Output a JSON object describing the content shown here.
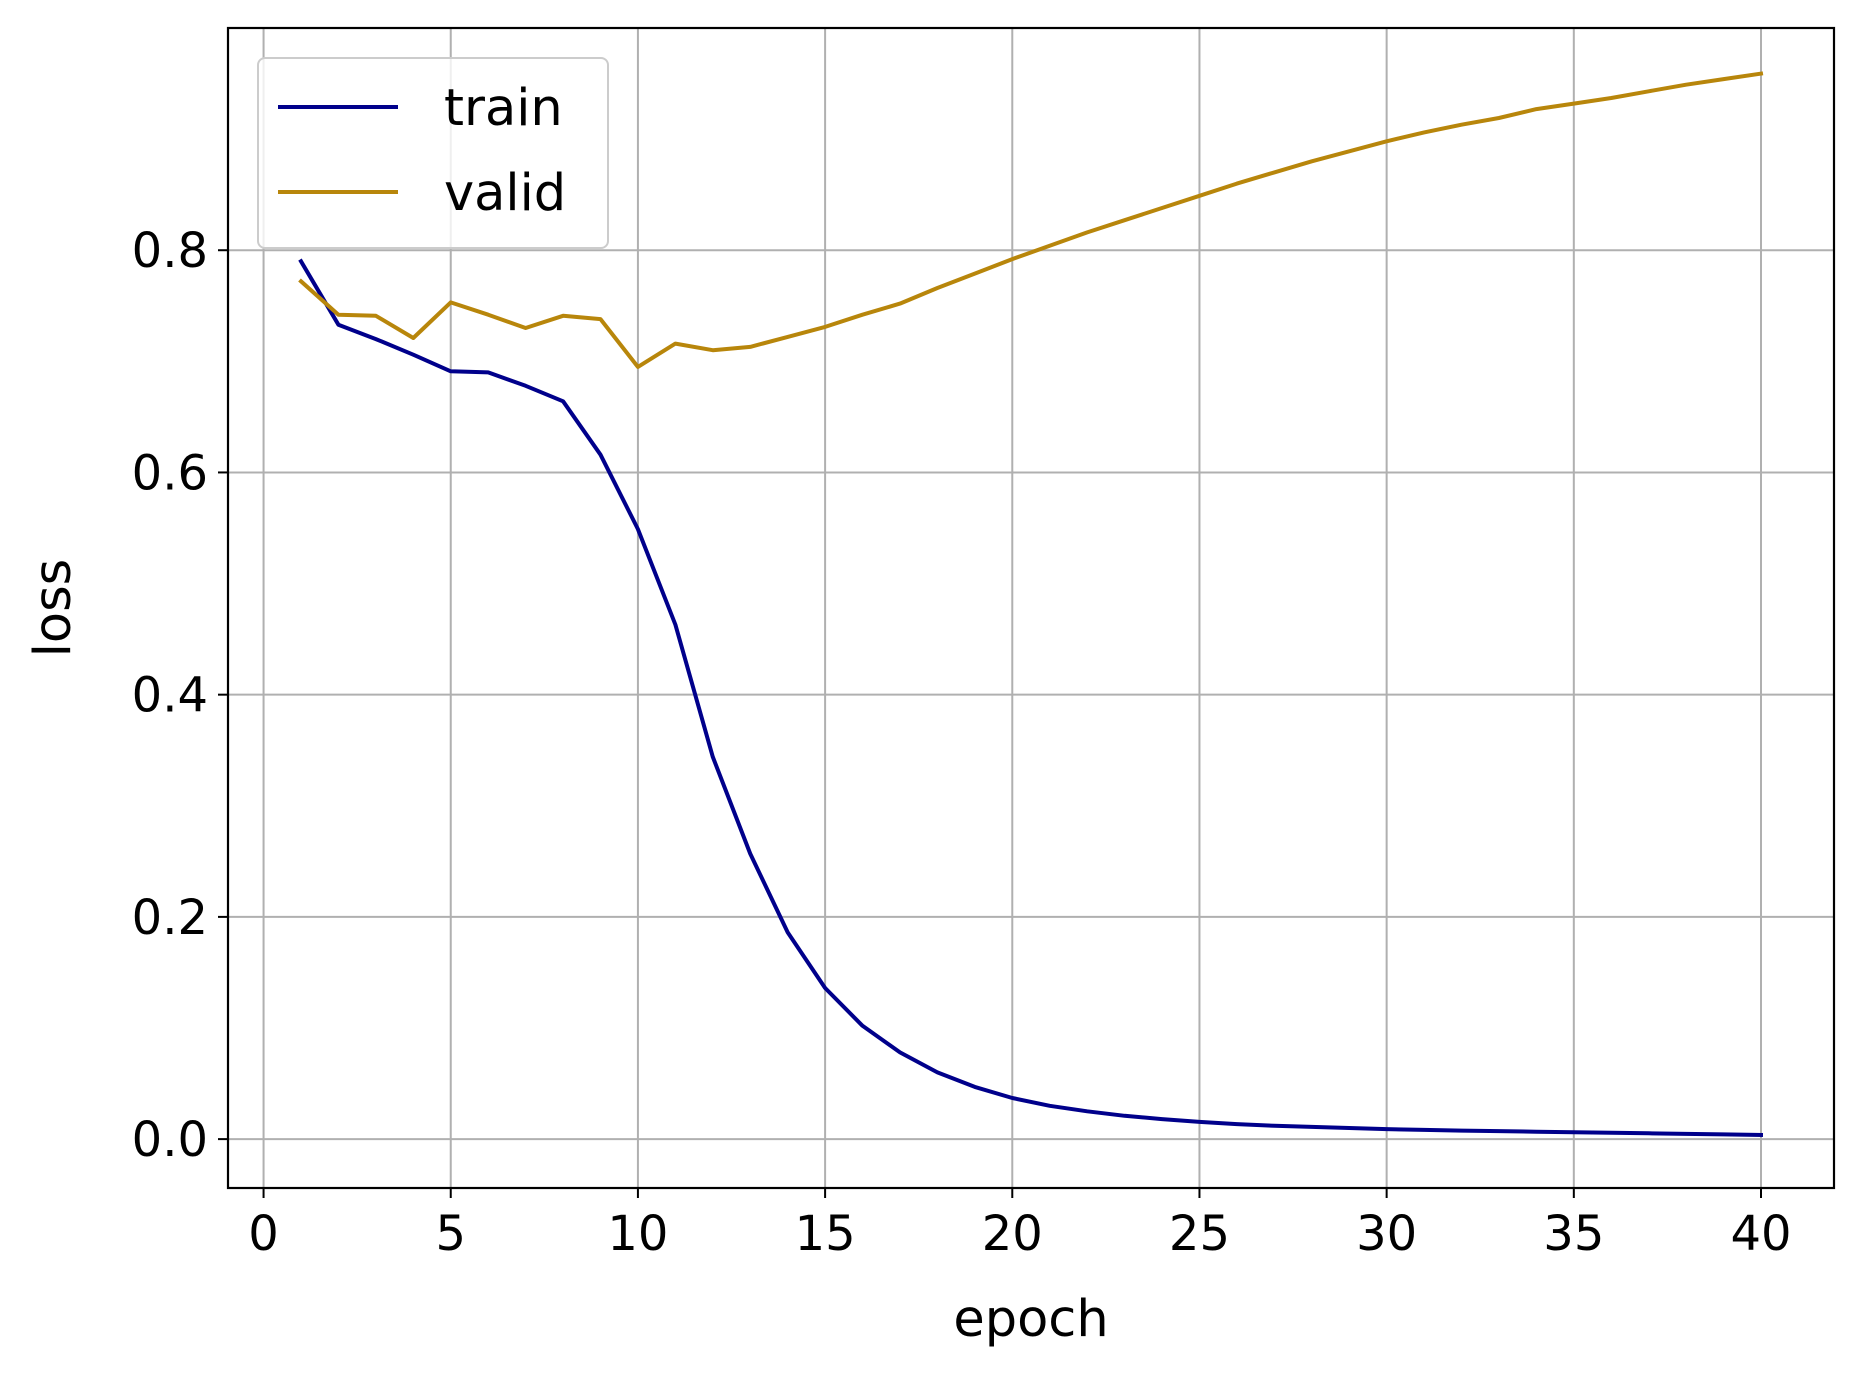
{
  "chart_data": {
    "type": "line",
    "title": "",
    "xlabel": "epoch",
    "ylabel": "loss",
    "xlim": [
      -0.95,
      41.95
    ],
    "ylim": [
      -0.044,
      1.0
    ],
    "xticks": [
      0,
      5,
      10,
      15,
      20,
      25,
      30,
      35,
      40
    ],
    "yticks": [
      0.0,
      0.2,
      0.4,
      0.6,
      0.8
    ],
    "xtick_labels": [
      "0",
      "5",
      "10",
      "15",
      "20",
      "25",
      "30",
      "35",
      "40"
    ],
    "ytick_labels": [
      "0.0",
      "0.2",
      "0.4",
      "0.6",
      "0.8"
    ],
    "grid": true,
    "legend_position": "top-left",
    "x": [
      1,
      2,
      3,
      4,
      5,
      6,
      7,
      8,
      9,
      10,
      11,
      12,
      13,
      14,
      15,
      16,
      17,
      18,
      19,
      20,
      21,
      22,
      23,
      24,
      25,
      26,
      27,
      28,
      29,
      30,
      31,
      32,
      33,
      34,
      35,
      36,
      37,
      38,
      39,
      40
    ],
    "series": [
      {
        "name": "train",
        "color": "#00008b",
        "values": [
          0.79,
          0.733,
          0.72,
          0.706,
          0.691,
          0.69,
          0.678,
          0.664,
          0.616,
          0.549,
          0.463,
          0.344,
          0.257,
          0.186,
          0.136,
          0.102,
          0.078,
          0.06,
          0.047,
          0.037,
          0.03,
          0.025,
          0.021,
          0.018,
          0.0155,
          0.0135,
          0.012,
          0.011,
          0.01,
          0.009,
          0.0083,
          0.0077,
          0.0072,
          0.0067,
          0.0062,
          0.0057,
          0.0052,
          0.0047,
          0.0042,
          0.0037
        ]
      },
      {
        "name": "valid",
        "color": "#b8860b",
        "values": [
          0.772,
          0.742,
          0.741,
          0.721,
          0.753,
          0.742,
          0.73,
          0.741,
          0.738,
          0.695,
          0.716,
          0.71,
          0.713,
          0.722,
          0.731,
          0.742,
          0.752,
          0.766,
          0.779,
          0.792,
          0.804,
          0.816,
          0.827,
          0.838,
          0.849,
          0.86,
          0.87,
          0.88,
          0.889,
          0.898,
          0.906,
          0.913,
          0.919,
          0.927,
          0.932,
          0.937,
          0.943,
          0.949,
          0.954,
          0.959
        ]
      }
    ]
  }
}
